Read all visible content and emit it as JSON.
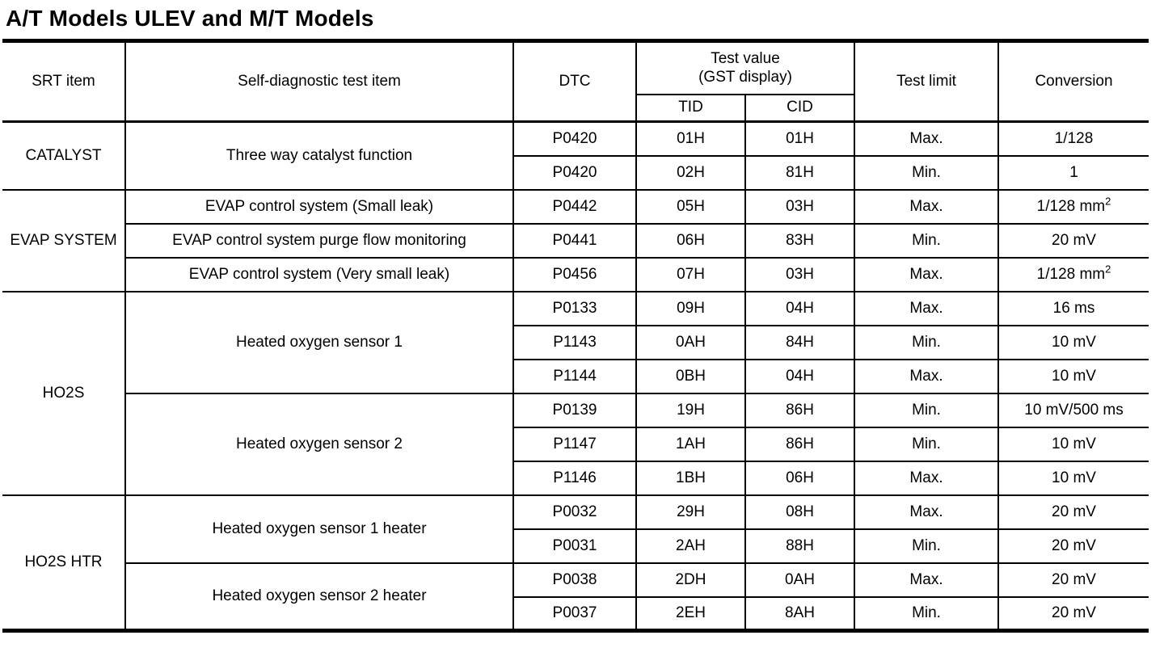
{
  "page_title": "A/T Models ULEV and M/T Models",
  "table": {
    "headers": {
      "srt_item": "SRT item",
      "test_item": "Self-diagnostic test item",
      "dtc": "DTC",
      "test_value_line1": "Test value",
      "test_value_line2": "(GST display)",
      "tid": "TID",
      "cid": "CID",
      "test_limit": "Test limit",
      "conversion": "Conversion"
    },
    "groups": [
      {
        "srt_item": "CATALYST",
        "tests": [
          {
            "name": "Three way catalyst function",
            "rows": [
              {
                "dtc": "P0420",
                "tid": "01H",
                "cid": "01H",
                "limit": "Max.",
                "conversion": "1/128"
              },
              {
                "dtc": "P0420",
                "tid": "02H",
                "cid": "81H",
                "limit": "Min.",
                "conversion": "1"
              }
            ]
          }
        ]
      },
      {
        "srt_item": "EVAP SYSTEM",
        "tests": [
          {
            "name": "EVAP control system (Small leak)",
            "rows": [
              {
                "dtc": "P0442",
                "tid": "05H",
                "cid": "03H",
                "limit": "Max.",
                "conversion": "1/128 mm",
                "conversion_sup": "2"
              }
            ]
          },
          {
            "name": "EVAP control system purge flow monitoring",
            "rows": [
              {
                "dtc": "P0441",
                "tid": "06H",
                "cid": "83H",
                "limit": "Min.",
                "conversion": "20 mV"
              }
            ]
          },
          {
            "name": "EVAP control system (Very small leak)",
            "rows": [
              {
                "dtc": "P0456",
                "tid": "07H",
                "cid": "03H",
                "limit": "Max.",
                "conversion": "1/128 mm",
                "conversion_sup": "2"
              }
            ]
          }
        ]
      },
      {
        "srt_item": "HO2S",
        "tests": [
          {
            "name": "Heated oxygen sensor 1",
            "rows": [
              {
                "dtc": "P0133",
                "tid": "09H",
                "cid": "04H",
                "limit": "Max.",
                "conversion": "16 ms"
              },
              {
                "dtc": "P1143",
                "tid": "0AH",
                "cid": "84H",
                "limit": "Min.",
                "conversion": "10 mV"
              },
              {
                "dtc": "P1144",
                "tid": "0BH",
                "cid": "04H",
                "limit": "Max.",
                "conversion": "10 mV"
              }
            ]
          },
          {
            "name": "Heated oxygen sensor 2",
            "rows": [
              {
                "dtc": "P0139",
                "tid": "19H",
                "cid": "86H",
                "limit": "Min.",
                "conversion": "10 mV/500 ms"
              },
              {
                "dtc": "P1147",
                "tid": "1AH",
                "cid": "86H",
                "limit": "Min.",
                "conversion": "10 mV"
              },
              {
                "dtc": "P1146",
                "tid": "1BH",
                "cid": "06H",
                "limit": "Max.",
                "conversion": "10 mV"
              }
            ]
          }
        ]
      },
      {
        "srt_item": "HO2S HTR",
        "tests": [
          {
            "name": "Heated oxygen sensor 1 heater",
            "rows": [
              {
                "dtc": "P0032",
                "tid": "29H",
                "cid": "08H",
                "limit": "Max.",
                "conversion": "20 mV"
              },
              {
                "dtc": "P0031",
                "tid": "2AH",
                "cid": "88H",
                "limit": "Min.",
                "conversion": "20 mV"
              }
            ]
          },
          {
            "name": "Heated oxygen sensor 2 heater",
            "rows": [
              {
                "dtc": "P0038",
                "tid": "2DH",
                "cid": "0AH",
                "limit": "Max.",
                "conversion": "20 mV"
              },
              {
                "dtc": "P0037",
                "tid": "2EH",
                "cid": "8AH",
                "limit": "Min.",
                "conversion": "20 mV"
              }
            ]
          }
        ]
      }
    ]
  }
}
